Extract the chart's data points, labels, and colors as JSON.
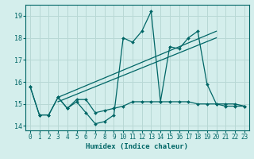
{
  "xlabel": "Humidex (Indice chaleur)",
  "background_color": "#d4eeec",
  "grid_color": "#b8d8d5",
  "line_color": "#006666",
  "xlim": [
    -0.5,
    23.5
  ],
  "ylim": [
    13.8,
    19.5
  ],
  "xticks": [
    0,
    1,
    2,
    3,
    4,
    5,
    6,
    7,
    8,
    9,
    10,
    11,
    12,
    13,
    14,
    15,
    16,
    17,
    18,
    19,
    20,
    21,
    22,
    23
  ],
  "yticks": [
    14,
    15,
    16,
    17,
    18,
    19
  ],
  "line1_x": [
    0,
    1,
    2,
    3,
    4,
    5,
    6,
    7,
    8,
    9,
    10,
    11,
    12,
    13,
    14,
    15,
    16,
    17,
    18,
    19,
    20,
    21,
    22,
    23
  ],
  "line1_y": [
    15.8,
    14.5,
    14.5,
    15.3,
    14.8,
    15.1,
    14.6,
    14.1,
    14.2,
    14.5,
    18.0,
    17.8,
    18.3,
    19.2,
    15.1,
    17.6,
    17.5,
    18.0,
    18.3,
    15.9,
    15.0,
    14.9,
    14.9,
    14.9
  ],
  "line2_x": [
    0,
    1,
    2,
    3,
    4,
    5,
    6,
    7,
    8,
    9,
    10,
    11,
    12,
    13,
    14,
    15,
    16,
    17,
    18,
    19,
    20,
    21,
    22,
    23
  ],
  "line2_y": [
    15.8,
    14.5,
    14.5,
    15.3,
    14.8,
    15.2,
    15.2,
    14.6,
    14.7,
    14.8,
    14.9,
    15.1,
    15.1,
    15.1,
    15.1,
    15.1,
    15.1,
    15.1,
    15.0,
    15.0,
    15.0,
    15.0,
    15.0,
    14.9
  ],
  "line3_x": [
    3,
    20
  ],
  "line3_y": [
    15.3,
    18.3
  ],
  "line4_x": [
    3,
    20
  ],
  "line4_y": [
    15.1,
    18.0
  ]
}
